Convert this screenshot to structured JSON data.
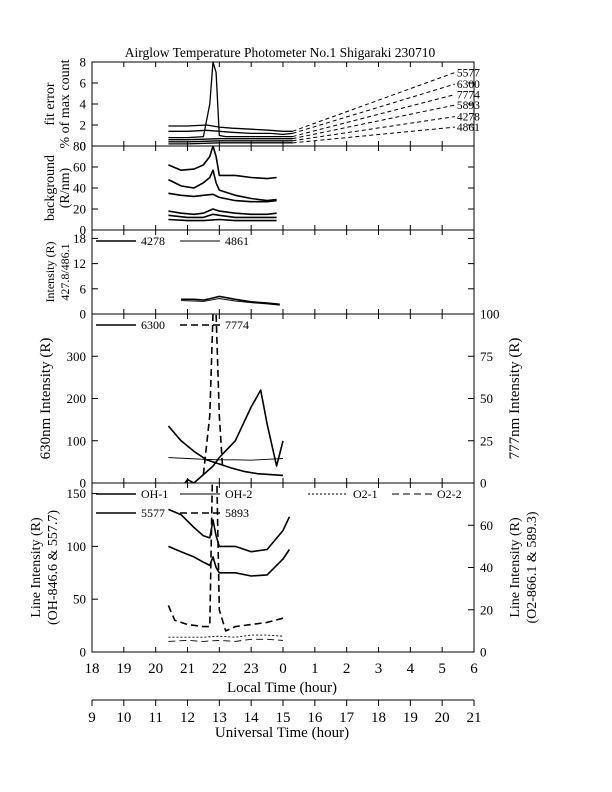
{
  "title": "Airglow Temperature Photometer No.1  Shigaraki  230710",
  "x_axes": {
    "local": {
      "label": "Local Time (hour)",
      "range": [
        18,
        30
      ],
      "tick_labels": [
        "18",
        "19",
        "20",
        "21",
        "22",
        "23",
        "0",
        "1",
        "2",
        "3",
        "4",
        "5",
        "6"
      ]
    },
    "universal": {
      "label": "Universal Time (hour)",
      "range": [
        9,
        21
      ],
      "tick_labels": [
        "9",
        "10",
        "11",
        "12",
        "13",
        "14",
        "15",
        "16",
        "17",
        "18",
        "19",
        "20",
        "21"
      ]
    }
  },
  "chart_data": [
    {
      "type": "line",
      "panel": "fit-error",
      "ylabel_lines": [
        "fit error",
        "% of max count"
      ],
      "ylim": [
        0,
        8
      ],
      "y_tick_labels": [
        "0",
        "2",
        "4",
        "6",
        "8"
      ],
      "series": [
        {
          "name": "5577",
          "dash": "dashed",
          "x": [
            20.4,
            21.0,
            21.6,
            22.0,
            22.4,
            23.0,
            23.6,
            24.0,
            24.3
          ],
          "y": [
            1.9,
            1.9,
            2.0,
            1.8,
            1.7,
            1.6,
            1.5,
            1.4,
            1.4
          ]
        },
        {
          "name": "6300",
          "dash": "dashed",
          "x": [
            20.4,
            21.0,
            21.6,
            22.0,
            22.4,
            23.0,
            23.6,
            24.0,
            24.3
          ],
          "y": [
            1.4,
            1.4,
            1.5,
            1.4,
            1.3,
            1.2,
            1.2,
            1.1,
            1.2
          ]
        },
        {
          "name": "7774",
          "dash": "dashed",
          "x": [
            20.4,
            21.0,
            21.5,
            21.7,
            21.8,
            21.9,
            22.0,
            22.2,
            23.0,
            24.0,
            24.3
          ],
          "y": [
            0.8,
            0.8,
            0.9,
            4.0,
            8.0,
            7.0,
            1.0,
            0.9,
            0.9,
            0.9,
            0.9
          ]
        },
        {
          "name": "5893",
          "dash": "dashed",
          "x": [
            20.4,
            21.0,
            22.0,
            23.0,
            24.0,
            24.3
          ],
          "y": [
            0.6,
            0.6,
            0.7,
            0.7,
            0.7,
            0.7
          ]
        },
        {
          "name": "4278",
          "dash": "dashed",
          "x": [
            20.4,
            21.0,
            22.0,
            23.0,
            24.0,
            24.3
          ],
          "y": [
            0.4,
            0.4,
            0.5,
            0.5,
            0.5,
            0.5
          ]
        },
        {
          "name": "4861",
          "dash": "dashed",
          "x": [
            20.4,
            21.0,
            22.0,
            23.0,
            24.0,
            24.3
          ],
          "y": [
            0.2,
            0.2,
            0.3,
            0.3,
            0.3,
            0.3
          ]
        }
      ],
      "labeled_series": [
        "5577",
        "6300",
        "7774",
        "5893",
        "4278",
        "4861"
      ],
      "label_end_x": 29.4,
      "label_end_y": [
        7.0,
        5.9,
        4.9,
        3.9,
        2.8,
        1.8
      ]
    },
    {
      "type": "line",
      "panel": "background",
      "ylabel_lines": [
        "background",
        "(R/nm)"
      ],
      "ylim": [
        0,
        80
      ],
      "y_tick_labels": [
        "0",
        "20",
        "40",
        "60",
        "80"
      ],
      "series": [
        {
          "dash": "solid",
          "x": [
            20.4,
            20.8,
            21.2,
            21.5,
            21.7,
            21.8,
            21.9,
            22.0,
            22.5,
            23.0,
            23.5,
            23.8
          ],
          "y": [
            62,
            57,
            58,
            62,
            70,
            80,
            70,
            52,
            52,
            50,
            49,
            50
          ]
        },
        {
          "dash": "solid",
          "x": [
            20.4,
            20.8,
            21.2,
            21.5,
            21.7,
            21.8,
            21.9,
            22.0,
            22.5,
            23.0,
            23.5,
            23.8
          ],
          "y": [
            48,
            42,
            40,
            45,
            50,
            57,
            45,
            38,
            33,
            30,
            28,
            29
          ]
        },
        {
          "dash": "solid",
          "x": [
            20.4,
            20.8,
            21.2,
            21.5,
            21.8,
            22.0,
            22.5,
            23.0,
            23.5,
            23.8
          ],
          "y": [
            35,
            33,
            32,
            33,
            34,
            31,
            28,
            27,
            27,
            28
          ]
        },
        {
          "dash": "solid",
          "x": [
            20.4,
            20.8,
            21.2,
            21.5,
            21.8,
            22.0,
            22.5,
            23.0,
            23.5,
            23.8
          ],
          "y": [
            18,
            16,
            15,
            16,
            20,
            18,
            16,
            15,
            15,
            16
          ]
        },
        {
          "dash": "solid",
          "x": [
            20.4,
            21.0,
            21.5,
            21.8,
            22.0,
            22.5,
            23.0,
            23.8
          ],
          "y": [
            14,
            12,
            12,
            15,
            14,
            12,
            12,
            12
          ]
        },
        {
          "dash": "solid",
          "x": [
            20.4,
            21.0,
            21.5,
            22.0,
            22.5,
            23.0,
            23.8
          ],
          "y": [
            10,
            9,
            9,
            10,
            9,
            9,
            9
          ]
        }
      ]
    },
    {
      "type": "line",
      "panel": "intensity-427-486",
      "ylabel_lines": [
        "Intensity (R)",
        "427.8/486.1"
      ],
      "ylim": [
        0,
        20
      ],
      "y_tick_labels": [
        "0",
        "6",
        "12",
        "18"
      ],
      "y_ticks": [
        0,
        6,
        12,
        18
      ],
      "legend": [
        {
          "name": "4278",
          "dash": "solid",
          "weight": "thick"
        },
        {
          "name": "4861",
          "dash": "solid",
          "weight": "thin"
        }
      ],
      "series": [
        {
          "name": "4278",
          "dash": "solid",
          "weight": "thick",
          "x": [
            20.8,
            21.2,
            21.5,
            21.8,
            22.0,
            22.5,
            23.0,
            23.5,
            23.9
          ],
          "y": [
            3.5,
            3.5,
            3.3,
            3.8,
            4.2,
            3.5,
            2.9,
            2.6,
            2.3
          ]
        },
        {
          "name": "4861",
          "dash": "solid",
          "weight": "thin",
          "x": [
            20.8,
            21.2,
            21.5,
            21.8,
            22.0,
            22.5,
            23.0,
            23.5,
            23.9
          ],
          "y": [
            3.2,
            3.1,
            3.0,
            3.4,
            3.7,
            3.1,
            2.7,
            2.4,
            2.1
          ]
        }
      ]
    },
    {
      "type": "line",
      "panel": "630-777",
      "ylabel": "630nm Intensity (R)",
      "ylim": [
        0,
        400
      ],
      "y_tick_labels": [
        "0",
        "100",
        "200",
        "300"
      ],
      "y_ticks": [
        0,
        100,
        200,
        300
      ],
      "y2label": "777nm Intensity (R)",
      "y2lim": [
        0,
        100
      ],
      "y2_tick_labels": [
        "0",
        "25",
        "50",
        "75",
        "100"
      ],
      "y2_ticks": [
        0,
        25,
        50,
        75,
        100
      ],
      "legend": [
        {
          "name": "6300",
          "dash": "solid",
          "weight": "thick"
        },
        {
          "name": "7774",
          "dash": "dashed",
          "weight": "thick"
        }
      ],
      "series": [
        {
          "name": "6300",
          "dash": "solid",
          "weight": "thick",
          "axis": "left",
          "x": [
            20.4,
            20.8,
            21.2,
            21.6,
            22.0,
            22.4,
            22.8,
            23.2,
            23.6,
            24.0
          ],
          "y": [
            135,
            100,
            75,
            55,
            45,
            35,
            27,
            22,
            20,
            18
          ]
        },
        {
          "name": "6300",
          "dash": "solid",
          "weight": "thin",
          "axis": "left",
          "x": [
            20.4,
            21.0,
            21.5,
            22.0,
            22.5,
            23.0,
            23.5,
            24.0
          ],
          "y": [
            60,
            58,
            56,
            55,
            55,
            54,
            56,
            58
          ]
        },
        {
          "name": "7774",
          "dash": "solid",
          "weight": "thick",
          "axis": "right",
          "x": [
            20.4,
            20.8,
            21.0,
            21.2,
            21.5,
            21.8,
            22.0,
            22.5,
            23.0,
            23.3,
            23.5,
            23.8,
            24.0
          ],
          "y": [
            0,
            -3,
            2,
            0,
            5,
            10,
            15,
            25,
            45,
            55,
            35,
            10,
            25
          ]
        },
        {
          "name": "7774",
          "dash": "dashed",
          "weight": "thick",
          "axis": "right",
          "x": [
            21.5,
            21.7,
            21.8,
            21.9,
            22.0,
            22.1
          ],
          "y": [
            5,
            40,
            100,
            100,
            40,
            10
          ]
        }
      ]
    },
    {
      "type": "line",
      "panel": "line-intensity",
      "ylabel_lines": [
        "Line Intensity (R)",
        "(OH-846.6 & 557.7)"
      ],
      "ylim": [
        0,
        160
      ],
      "y_tick_labels": [
        "0",
        "50",
        "100",
        "150"
      ],
      "y_ticks": [
        0,
        50,
        100,
        150
      ],
      "y2label_lines": [
        "Line Intensity (R)",
        "(O2-866.1 & 589.3)"
      ],
      "y2lim": [
        0,
        80
      ],
      "y2_tick_labels": [
        "0",
        "20",
        "40",
        "60"
      ],
      "y2_ticks": [
        0,
        20,
        40,
        60
      ],
      "legend": [
        {
          "name": "OH-1",
          "dash": "solid",
          "weight": "thick"
        },
        {
          "name": "OH-2",
          "dash": "solid",
          "weight": "thin"
        },
        {
          "name": "O2-1",
          "dash": "dotted",
          "weight": "thin"
        },
        {
          "name": "O2-2",
          "dash": "dashed",
          "weight": "thin"
        },
        {
          "name": "5577",
          "dash": "solid",
          "weight": "thick"
        },
        {
          "name": "5893",
          "dash": "dashed",
          "weight": "thick"
        }
      ],
      "series": [
        {
          "name": "5577",
          "dash": "solid",
          "weight": "thick",
          "axis": "left",
          "x": [
            20.4,
            20.8,
            21.2,
            21.5,
            21.7,
            21.8,
            21.9,
            22.0,
            22.5,
            23.0,
            23.5,
            24.0,
            24.2
          ],
          "y": [
            135,
            130,
            118,
            110,
            108,
            125,
            110,
            100,
            100,
            95,
            97,
            115,
            128
          ]
        },
        {
          "name": "OH-1",
          "dash": "solid",
          "weight": "thick",
          "axis": "left",
          "x": [
            20.4,
            20.8,
            21.2,
            21.5,
            21.7,
            21.8,
            21.9,
            22.0,
            22.5,
            23.0,
            23.5,
            24.0,
            24.2
          ],
          "y": [
            100,
            95,
            90,
            85,
            82,
            90,
            80,
            75,
            75,
            72,
            73,
            88,
            97
          ]
        },
        {
          "name": "5893",
          "dash": "dashed",
          "weight": "thick",
          "axis": "right",
          "x": [
            20.4,
            20.6,
            21.0,
            21.5,
            21.7,
            21.8,
            21.9,
            22.0,
            22.2,
            22.5,
            23.0,
            23.5,
            24.0
          ],
          "y": [
            22,
            15,
            13,
            12,
            12,
            100,
            100,
            20,
            10,
            12,
            13,
            14,
            16
          ]
        },
        {
          "name": "O2-1",
          "dash": "dotted",
          "weight": "thin",
          "axis": "right",
          "x": [
            20.4,
            21.0,
            21.5,
            22.0,
            22.5,
            23.0,
            23.5,
            24.0
          ],
          "y": [
            7,
            7,
            7,
            7.5,
            7,
            8,
            8,
            7.5
          ]
        },
        {
          "name": "O2-2",
          "dash": "dashed",
          "weight": "thin",
          "axis": "right",
          "x": [
            20.4,
            21.0,
            21.5,
            22.0,
            22.5,
            23.0,
            23.5,
            24.0
          ],
          "y": [
            5,
            5.5,
            5,
            5.5,
            5,
            6,
            6,
            5.5
          ]
        }
      ]
    }
  ]
}
